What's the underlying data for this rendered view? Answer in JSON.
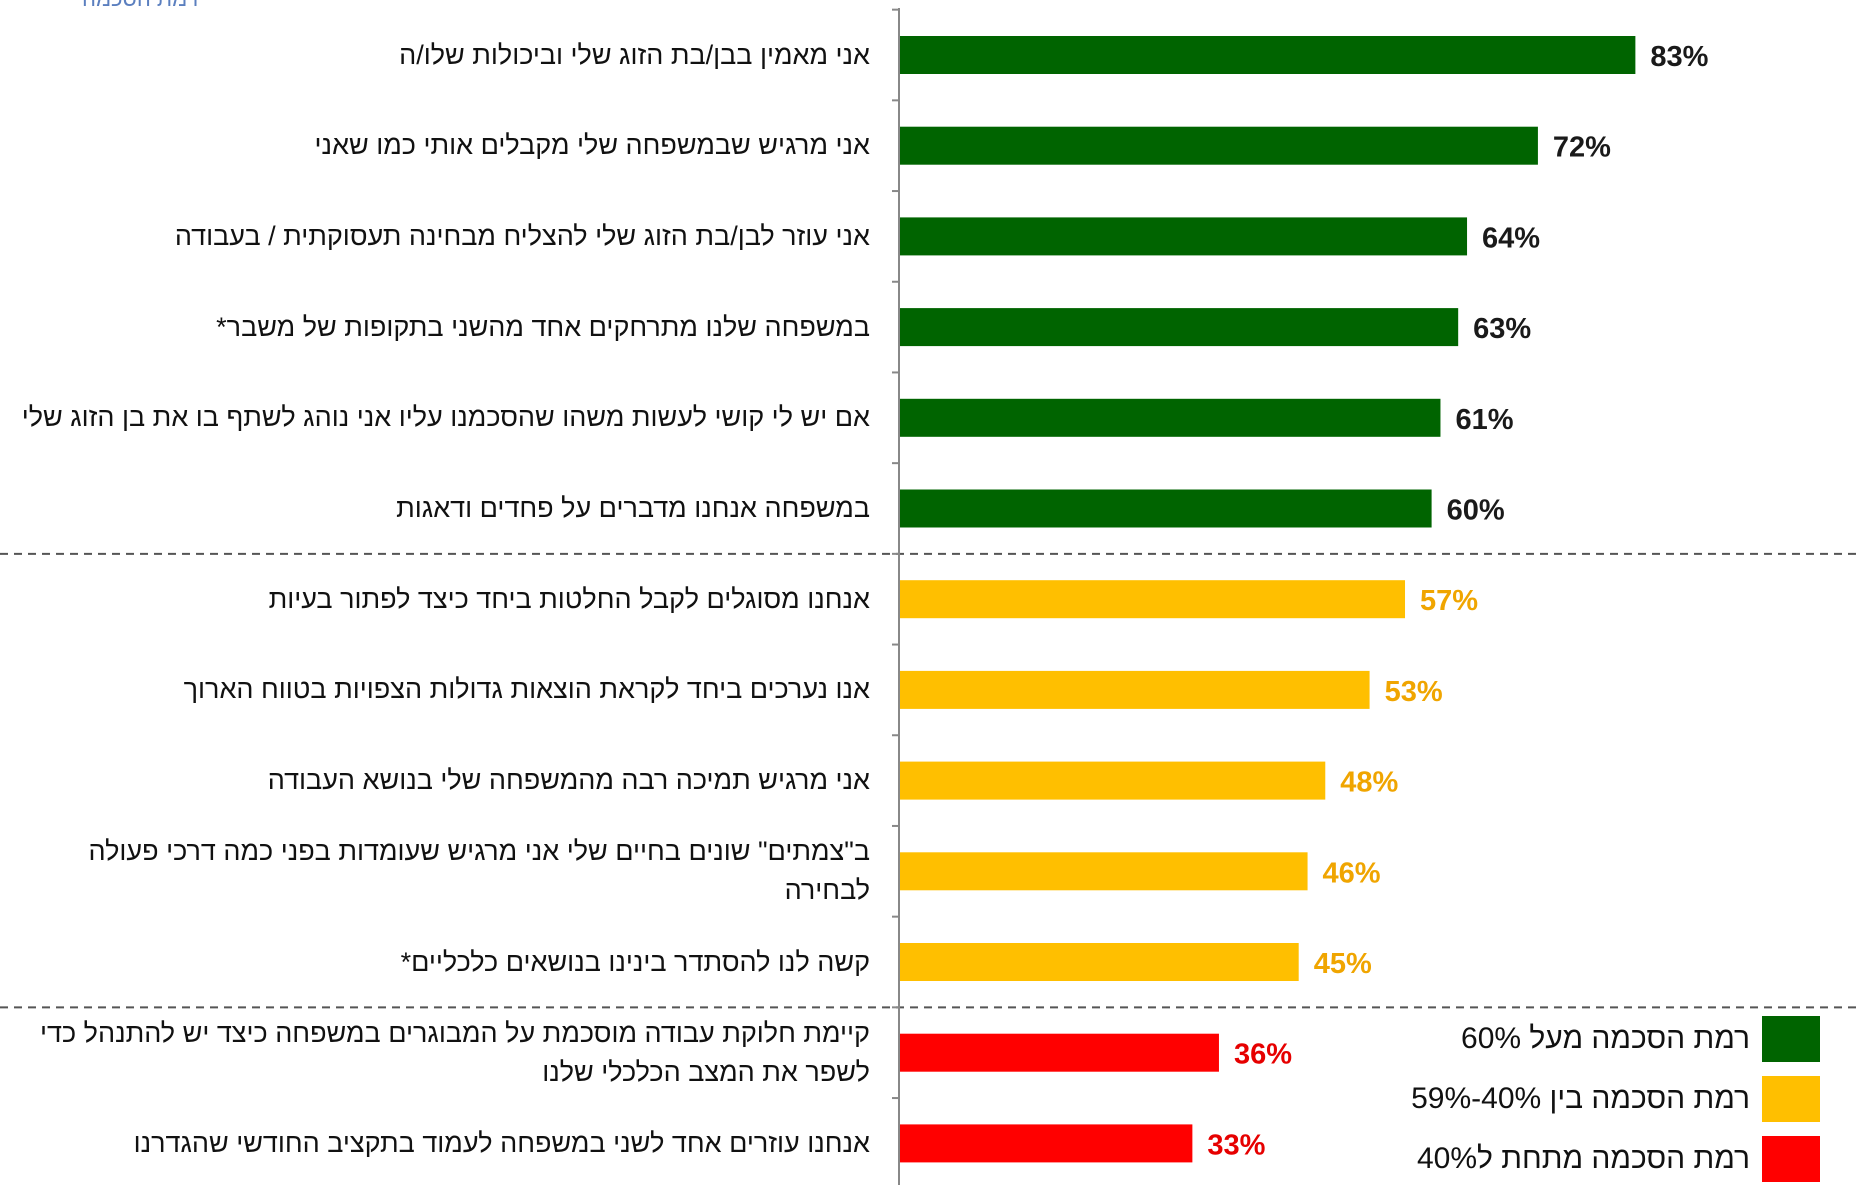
{
  "colors": {
    "green": "#006400",
    "yellow": "#FFBF00",
    "red": "#FF0000",
    "value_green": "#1a1a1a",
    "value_yellow": "#F0A500",
    "value_red": "#E60000",
    "axis": "#888888",
    "divider": "#555555"
  },
  "chart_data": {
    "type": "bar",
    "orientation": "horizontal",
    "categories": [
      "אני מאמין בבן/בת הזוג שלי וביכולות שלו/ה",
      "אני מרגיש שבמשפחה שלי מקבלים אותי כמו שאני",
      "אני עוזר לבן/בת הזוג שלי להצליח מבחינה תעסוקתית / בעבודה",
      "במשפחה שלנו מתרחקים אחד מהשני בתקופות של משבר*",
      "אם יש לי קושי לעשות משהו שהסכמנו עליו אני נוהג לשתף בו את בן הזוג שלי",
      "במשפחה אנחנו מדברים על פחדים ודאגות",
      "אנחנו מסוגלים לקבל החלטות ביחד כיצד לפתור בעיות",
      "אנו נערכים ביחד לקראת הוצאות גדולות הצפויות בטווח הארוך",
      "אני מרגיש תמיכה רבה מהמשפחה שלי בנושא העבודה",
      "ב\"צמתים\" שונים בחיים שלי אני מרגיש שעומדות בפני כמה דרכי פעולה לבחירה",
      "קשה לנו להסתדר בינינו בנושאים כלכליים*",
      "קיימת חלוקת עבודה מוסכמת על המבוגרים במשפחה כיצד יש להתנהל כדי לשפר את המצב הכלכלי שלנו",
      "אנחנו עוזרים אחד לשני במשפחה לעמוד בתקציב החודשי שהגדרנו"
    ],
    "values": [
      83,
      72,
      64,
      63,
      61,
      60,
      57,
      53,
      48,
      46,
      45,
      36,
      33
    ],
    "value_labels": [
      "83%",
      "72%",
      "64%",
      "63%",
      "61%",
      "60%",
      "57%",
      "53%",
      "48%",
      "46%",
      "45%",
      "36%",
      "33%"
    ],
    "levels": [
      "high",
      "high",
      "high",
      "high",
      "high",
      "high",
      "mid",
      "mid",
      "mid",
      "mid",
      "mid",
      "low",
      "low"
    ],
    "xlim": [
      0,
      100
    ],
    "unit": "%",
    "grid": false,
    "legend_position": "bottom-right"
  },
  "legend": [
    {
      "text": "רמת הסכמה מעל 60%",
      "color": "#006400"
    },
    {
      "text": "רמת הסכמה בין 40%-59%",
      "color": "#FFBF00"
    },
    {
      "text": "רמת הסכמה מתחת ל40%",
      "color": "#FF0000"
    }
  ],
  "corner_text": "רמת הסכמה"
}
